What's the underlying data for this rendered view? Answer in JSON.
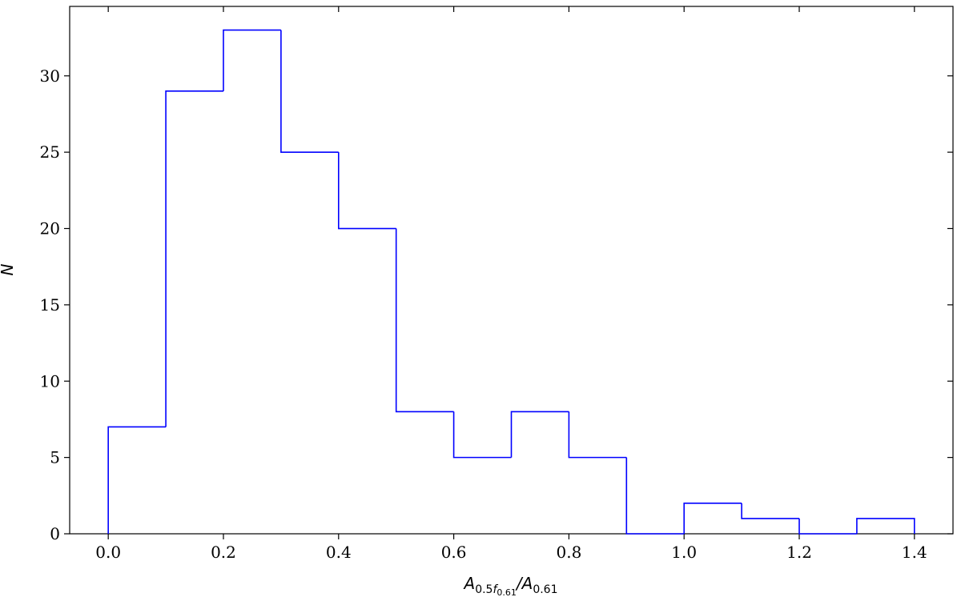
{
  "chart_data": {
    "type": "histogram",
    "xlabel_parts": [
      "A",
      "0.5",
      "f",
      "0.61",
      "/A",
      "0.61"
    ],
    "ylabel": "N",
    "bins": [
      0.0,
      0.1,
      0.2,
      0.3,
      0.4,
      0.5,
      0.6,
      0.7,
      0.8,
      0.9,
      1.0,
      1.1,
      1.2,
      1.3,
      1.4
    ],
    "values": [
      7,
      29,
      33,
      25,
      20,
      8,
      5,
      8,
      5,
      0,
      2,
      1,
      0,
      1
    ],
    "color": "#0000ff",
    "xlim": [
      -0.067,
      1.467
    ],
    "ylim": [
      0,
      34.55
    ],
    "xticks": [
      {
        "value": 0,
        "label": "0.0"
      },
      {
        "value": 0.2,
        "label": "0.2"
      },
      {
        "value": 0.4,
        "label": "0.4"
      },
      {
        "value": 0.6,
        "label": "0.6"
      },
      {
        "value": 0.8,
        "label": "0.8"
      },
      {
        "value": 1,
        "label": "1.0"
      },
      {
        "value": 1.2,
        "label": "1.2"
      },
      {
        "value": 1.4,
        "label": "1.4"
      }
    ],
    "yticks": [
      0,
      5,
      10,
      15,
      20,
      25,
      30
    ]
  }
}
